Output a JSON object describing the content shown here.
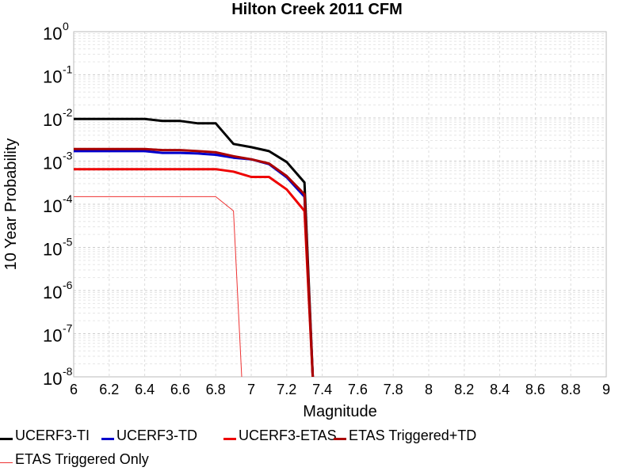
{
  "chart_data": {
    "type": "line",
    "title": "Hilton Creek 2011 CFM",
    "xlabel": "Magnitude",
    "ylabel": "10 Year Probability",
    "xlim": [
      6,
      9
    ],
    "ylim": [
      1e-08,
      1
    ],
    "yscale": "log",
    "grid": true,
    "legend_position": "bottom",
    "x_ticks": [
      "6",
      "6.2",
      "6.4",
      "6.6",
      "6.8",
      "7",
      "7.2",
      "7.4",
      "7.6",
      "7.8",
      "8",
      "8.2",
      "8.4",
      "8.6",
      "8.8",
      "9"
    ],
    "y_ticks": [
      {
        "base": "10",
        "exp": "0"
      },
      {
        "base": "10",
        "exp": "-1"
      },
      {
        "base": "10",
        "exp": "-2"
      },
      {
        "base": "10",
        "exp": "-3"
      },
      {
        "base": "10",
        "exp": "-4"
      },
      {
        "base": "10",
        "exp": "-5"
      },
      {
        "base": "10",
        "exp": "-6"
      },
      {
        "base": "10",
        "exp": "-7"
      },
      {
        "base": "10",
        "exp": "-8"
      }
    ],
    "series": [
      {
        "name": "UCERF3-TI",
        "color": "#000000",
        "width": 3,
        "x": [
          6.0,
          6.1,
          6.2,
          6.3,
          6.4,
          6.5,
          6.6,
          6.7,
          6.8,
          6.9,
          7.0,
          7.1,
          7.2,
          7.3,
          7.35
        ],
        "y": [
          0.0095,
          0.0095,
          0.0095,
          0.0095,
          0.0095,
          0.0085,
          0.0085,
          0.0075,
          0.0075,
          0.0025,
          0.0021,
          0.0017,
          0.00095,
          0.00032,
          5e-09
        ]
      },
      {
        "name": "UCERF3-TD",
        "color": "#0000cc",
        "width": 3,
        "x": [
          6.0,
          6.1,
          6.2,
          6.3,
          6.4,
          6.5,
          6.6,
          6.7,
          6.8,
          6.9,
          7.0,
          7.1,
          7.2,
          7.3,
          7.35
        ],
        "y": [
          0.0017,
          0.0017,
          0.0017,
          0.0017,
          0.0017,
          0.00155,
          0.00155,
          0.0015,
          0.0014,
          0.0012,
          0.0011,
          0.00085,
          0.00042,
          0.00015,
          5e-09
        ]
      },
      {
        "name": "UCERF3-ETAS",
        "color": "#ee0000",
        "width": 3,
        "x": [
          6.0,
          6.1,
          6.2,
          6.3,
          6.4,
          6.5,
          6.6,
          6.7,
          6.8,
          6.9,
          7.0,
          7.1,
          7.2,
          7.3,
          7.35
        ],
        "y": [
          0.00065,
          0.00065,
          0.00065,
          0.00065,
          0.00065,
          0.00065,
          0.00065,
          0.00065,
          0.00065,
          0.00057,
          0.00043,
          0.00043,
          0.00022,
          7e-05,
          5e-09
        ]
      },
      {
        "name": "ETAS Triggered+TD",
        "color": "#aa0000",
        "width": 3,
        "x": [
          6.0,
          6.1,
          6.2,
          6.3,
          6.4,
          6.5,
          6.6,
          6.7,
          6.8,
          6.9,
          7.0,
          7.1,
          7.2,
          7.3,
          7.35
        ],
        "y": [
          0.0019,
          0.0019,
          0.0019,
          0.0019,
          0.0019,
          0.0018,
          0.0018,
          0.0017,
          0.0016,
          0.0013,
          0.0011,
          0.00088,
          0.00045,
          0.00017,
          5e-09
        ]
      },
      {
        "name": "ETAS Triggered Only",
        "color": "#ee3333",
        "width": 1,
        "x": [
          6.0,
          6.1,
          6.2,
          6.3,
          6.4,
          6.5,
          6.6,
          6.7,
          6.8,
          6.9,
          6.95
        ],
        "y": [
          0.00015,
          0.00015,
          0.00015,
          0.00015,
          0.00015,
          0.00015,
          0.00015,
          0.00015,
          0.00015,
          7e-05,
          5e-09
        ]
      }
    ]
  }
}
